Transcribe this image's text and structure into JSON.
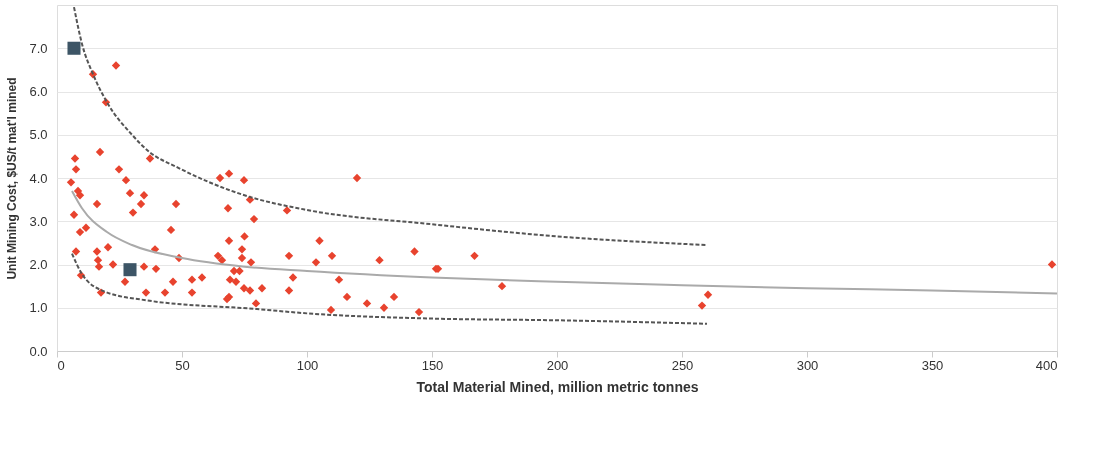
{
  "chart_data": {
    "type": "scatter",
    "xlabel": "Total Material Mined, million metric tonnes",
    "ylabel": "Unit Mining Cost, $US/t mat'l mined",
    "xlim": [
      0,
      400
    ],
    "xticks": [
      0,
      50,
      100,
      150,
      200,
      250,
      300,
      350,
      400
    ],
    "ylim": [
      0,
      8
    ],
    "yticks": [
      {
        "value": 0,
        "label": "0.0"
      },
      {
        "value": 1,
        "label": "1.0"
      },
      {
        "value": 2,
        "label": "2.0"
      },
      {
        "value": 3,
        "label": "3.0"
      },
      {
        "value": 4,
        "label": "4.0"
      },
      {
        "value": 5,
        "label": "5.0"
      },
      {
        "value": 6,
        "label": "6.0"
      },
      {
        "value": 7,
        "label": "7.0"
      }
    ],
    "grid": "y",
    "series": [
      {
        "marker": "diamond",
        "color": "#e8432e",
        "x": [
          23.6,
          14.4,
          19.6,
          17.2,
          7.2,
          7.6,
          37.2,
          24.8,
          27.6,
          5.6,
          8.4,
          9.2,
          29.2,
          34.8,
          33.6,
          16,
          47.6,
          6.8,
          30.4,
          11.6,
          9.2,
          45.6,
          39.2,
          7.6,
          16,
          20.4,
          16.4,
          16.8,
          22.4,
          48.8,
          34.8,
          39.6,
          9.6,
          27.2,
          46.4,
          17.6,
          35.6,
          43.2,
          54,
          58,
          54,
          65.2,
          68.8,
          74.8,
          77.2,
          68.4,
          78.8,
          92,
          120,
          68.8,
          75,
          74,
          64.4,
          66,
          74,
          77.6,
          92.8,
          105,
          110,
          103.6,
          129,
          143,
          151.6,
          70.8,
          73,
          69.2,
          71.6,
          94.4,
          112.8,
          74.8,
          77.2,
          82,
          92.8,
          68.8,
          68,
          79.6,
          116,
          124,
          134.8,
          130.8,
          109.6,
          144.8,
          152.4,
          167,
          178,
          258,
          260.4,
          398
        ],
        "values": [
          6.6,
          6.4,
          5.75,
          4.6,
          4.45,
          4.2,
          4.45,
          4.2,
          3.95,
          3.9,
          3.7,
          3.6,
          3.65,
          3.6,
          3.4,
          3.4,
          3.4,
          3.15,
          3.2,
          2.85,
          2.75,
          2.8,
          2.35,
          2.3,
          2.3,
          2.4,
          2.1,
          1.95,
          2.0,
          2.15,
          1.95,
          1.9,
          1.75,
          1.6,
          1.6,
          1.35,
          1.35,
          1.35,
          1.65,
          1.7,
          1.35,
          4.0,
          4.1,
          3.95,
          3.5,
          3.3,
          3.05,
          3.25,
          4.0,
          2.55,
          2.65,
          2.35,
          2.2,
          2.1,
          2.15,
          2.05,
          2.2,
          2.55,
          2.2,
          2.05,
          2.1,
          2.3,
          1.9,
          1.85,
          1.85,
          1.65,
          1.6,
          1.7,
          1.65,
          1.45,
          1.4,
          1.45,
          1.4,
          1.25,
          1.2,
          1.1,
          1.25,
          1.1,
          1.25,
          1.0,
          0.95,
          0.9,
          1.9,
          2.2,
          1.5,
          1.05,
          1.3,
          2.0
        ]
      },
      {
        "marker": "square",
        "color": "#3d5566",
        "x": [
          6.8,
          29.2
        ],
        "values": [
          7.0,
          1.88
        ]
      },
      {
        "type": "line",
        "line_style": "solid",
        "color": "#aaaaaa",
        "x": [
          6,
          10,
          20,
          30,
          50,
          75,
          100,
          150,
          200,
          250,
          300,
          350,
          400
        ],
        "values": [
          3.7,
          3.3,
          2.75,
          2.45,
          2.15,
          1.95,
          1.85,
          1.7,
          1.6,
          1.52,
          1.45,
          1.4,
          1.33
        ]
      },
      {
        "type": "line",
        "line_style": "dashed",
        "color": "#555555",
        "x": [
          6.8,
          10,
          14.4,
          20,
          30,
          37,
          48,
          75,
          100,
          150,
          200,
          260
        ],
        "values": [
          7.95,
          7.1,
          6.4,
          5.75,
          5.0,
          4.6,
          4.25,
          3.6,
          3.26,
          2.93,
          2.65,
          2.45
        ]
      },
      {
        "type": "line",
        "line_style": "dashed",
        "color": "#555555",
        "x": [
          6,
          10,
          18.8,
          36,
          80,
          100,
          150,
          200,
          260
        ],
        "values": [
          2.25,
          1.78,
          1.38,
          1.17,
          0.97,
          0.87,
          0.75,
          0.71,
          0.63
        ]
      }
    ]
  }
}
